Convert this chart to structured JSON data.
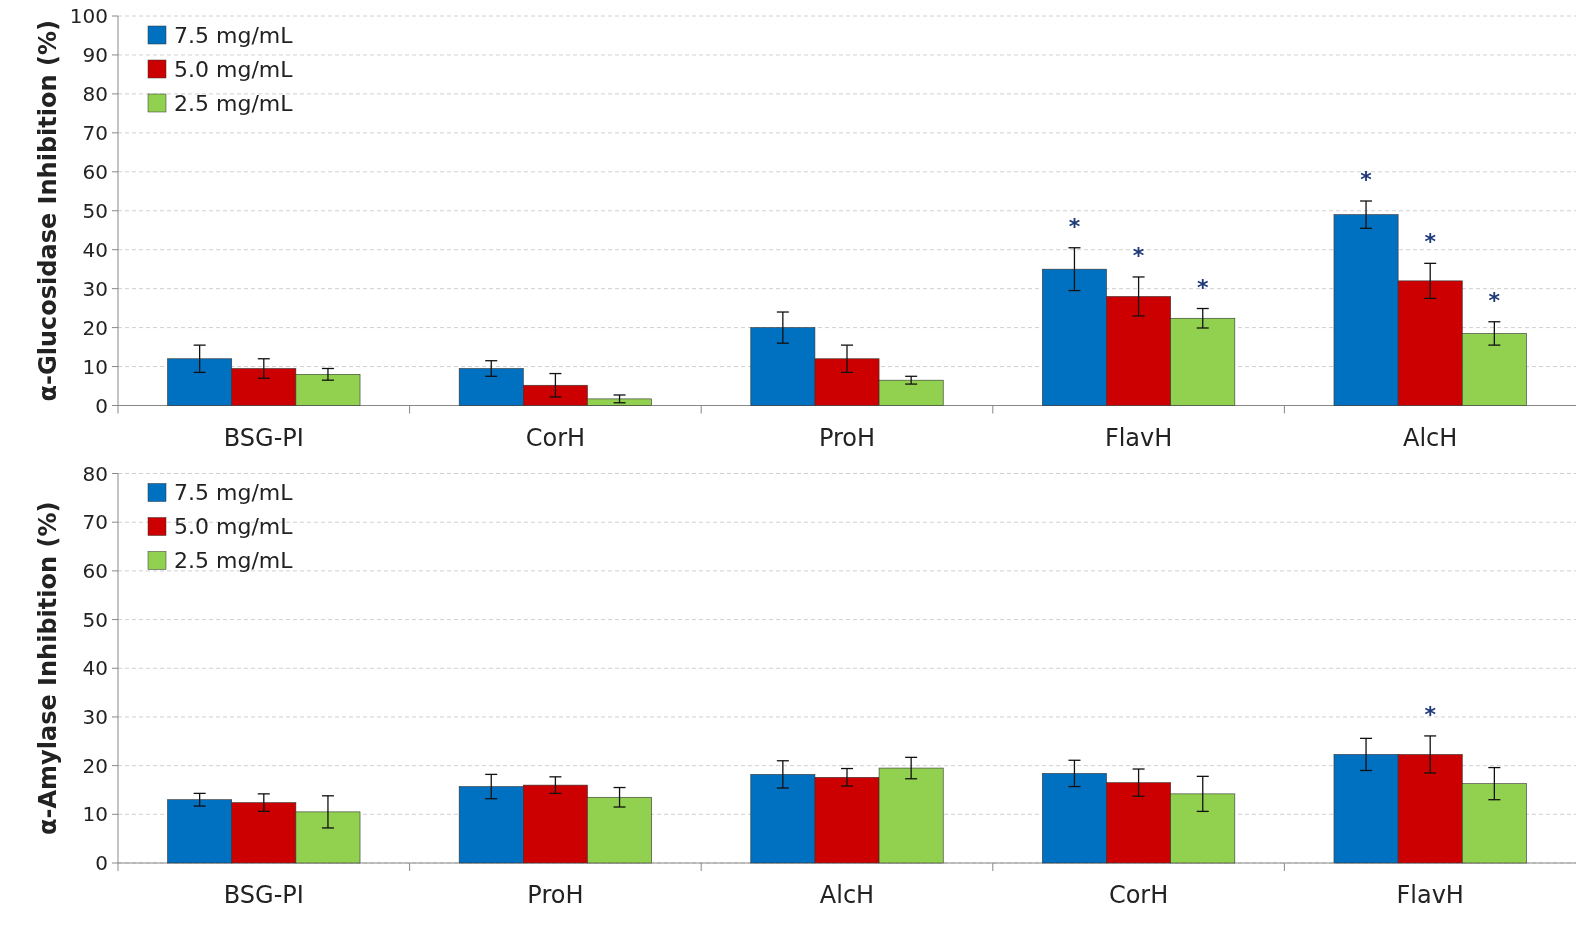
{
  "chart_data": [
    {
      "type": "bar",
      "ylabel": "α-Glucosidase Inhibition (%)",
      "categories": [
        "BSG-PI",
        "CorH",
        "ProH",
        "FlavH",
        "AlcH"
      ],
      "ylim": [
        0,
        100
      ],
      "yticks": [
        0,
        10,
        20,
        30,
        40,
        50,
        60,
        70,
        80,
        90,
        100
      ],
      "grid": "y",
      "legend": "top left",
      "series": [
        {
          "name": "7.5 mg/mL",
          "color": "#0070c0",
          "values": [
            12,
            9.5,
            20,
            35,
            49
          ],
          "errors": [
            3.5,
            2,
            4,
            5.5,
            3.5
          ],
          "value_labels": [
            null,
            null,
            null,
            "*",
            "*"
          ]
        },
        {
          "name": "5.0  mg/mL",
          "color": "#cc0000",
          "values": [
            9.5,
            5.2,
            12,
            28,
            32
          ],
          "errors": [
            2.5,
            3,
            3.5,
            5,
            4.5
          ],
          "value_labels": [
            null,
            null,
            null,
            "*",
            "*"
          ]
        },
        {
          "name": "2.5  mg/mL",
          "color": "#92d050",
          "values": [
            8,
            1.7,
            6.5,
            22.4,
            18.5
          ],
          "errors": [
            1.5,
            1,
            1,
            2.5,
            3
          ],
          "value_labels": [
            null,
            null,
            null,
            "*",
            "*"
          ]
        }
      ]
    },
    {
      "type": "bar",
      "ylabel": "α-Amylase Inhibition (%)",
      "categories": [
        "BSG-PI",
        "ProH",
        "AlcH",
        "CorH",
        "FlavH"
      ],
      "ylim": [
        0,
        80
      ],
      "yticks": [
        0,
        10,
        20,
        30,
        40,
        50,
        60,
        70,
        80
      ],
      "grid": "y",
      "legend": "top left",
      "series": [
        {
          "name": "7.5 mg/mL",
          "color": "#0070c0",
          "values": [
            13,
            15.7,
            18.2,
            18.4,
            22.3
          ],
          "errors": [
            1.3,
            2.5,
            2.8,
            2.7,
            3.3
          ]
        },
        {
          "name": "5.0  mg/mL",
          "color": "#cc0000",
          "values": [
            12.4,
            16,
            17.6,
            16.5,
            22.3
          ],
          "errors": [
            1.8,
            1.7,
            1.8,
            2.8,
            3.8
          ],
          "value_labels": [
            null,
            null,
            null,
            null,
            "*"
          ]
        },
        {
          "name": "2.5  mg/mL",
          "color": "#92d050",
          "values": [
            10.5,
            13.5,
            19.5,
            14.2,
            16.3
          ],
          "errors": [
            3.3,
            2,
            2.2,
            3.6,
            3.3
          ]
        }
      ]
    }
  ]
}
